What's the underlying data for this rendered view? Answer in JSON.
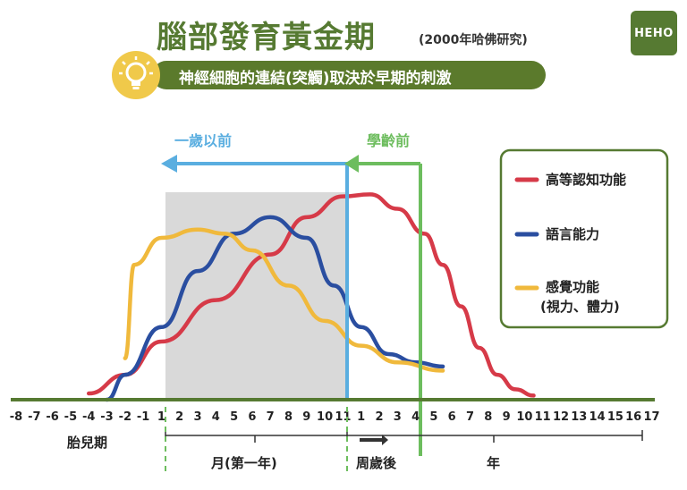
{
  "title": "腦部發育黃金期",
  "source": "(2000年哈佛研究)",
  "subtitle": "神經細胞的連結(突觸)取決於早期的刺激",
  "logo": "HEHO",
  "colors": {
    "green": "#567a32",
    "red": "#d63a48",
    "blue": "#2a4ea0",
    "yellow": "#f0b93c",
    "lightblue": "#5aaee0",
    "lightgreen": "#6dbd5e",
    "shade": "#d9d9d9"
  },
  "chart_data": {
    "type": "line",
    "x_ticks": [
      "-8",
      "-7",
      "-6",
      "-5",
      "-4",
      "-3",
      "-2",
      "-1",
      "1",
      "2",
      "3",
      "4",
      "5",
      "6",
      "7",
      "8",
      "9",
      "10",
      "11",
      "1",
      "2",
      "3",
      "4",
      "5",
      "6",
      "7",
      "8",
      "9",
      "10",
      "11",
      "12",
      "13",
      "14",
      "15",
      "16",
      "17"
    ],
    "periods": [
      {
        "label": "胎兒期"
      },
      {
        "label": "月(第一年)"
      },
      {
        "label": "周歲後"
      },
      {
        "label": "年"
      }
    ],
    "markers": [
      {
        "label": "一歲以前"
      },
      {
        "label": "學齡前"
      }
    ],
    "series": [
      {
        "name": "高等認知功能",
        "color": "#d63a48",
        "points": [
          [
            -3,
            0.03
          ],
          [
            -1,
            0.12
          ],
          [
            1,
            0.28
          ],
          [
            4,
            0.48
          ],
          [
            7,
            0.7
          ],
          [
            9,
            0.88
          ],
          [
            11,
            0.98
          ],
          [
            12.5,
            0.99
          ],
          [
            14,
            0.92
          ],
          [
            15.5,
            0.8
          ],
          [
            16.5,
            0.65
          ],
          [
            17.5,
            0.45
          ],
          [
            18.5,
            0.25
          ],
          [
            19.5,
            0.12
          ],
          [
            20.5,
            0.05
          ],
          [
            21.5,
            0.02
          ]
        ]
      },
      {
        "name": "語言能力",
        "color": "#2a4ea0",
        "points": [
          [
            -2,
            0.0
          ],
          [
            -1,
            0.12
          ],
          [
            1,
            0.35
          ],
          [
            3,
            0.62
          ],
          [
            5,
            0.8
          ],
          [
            7,
            0.88
          ],
          [
            9,
            0.78
          ],
          [
            10.5,
            0.55
          ],
          [
            12,
            0.35
          ],
          [
            13.5,
            0.22
          ],
          [
            15,
            0.18
          ],
          [
            16.5,
            0.16
          ]
        ]
      },
      {
        "name": "感覺功能(視力、體力)",
        "color": "#f0b93c",
        "points": [
          [
            -1,
            0.2
          ],
          [
            -0.5,
            0.65
          ],
          [
            1,
            0.78
          ],
          [
            3,
            0.82
          ],
          [
            4.5,
            0.8
          ],
          [
            6,
            0.72
          ],
          [
            8,
            0.55
          ],
          [
            10,
            0.38
          ],
          [
            12,
            0.26
          ],
          [
            14,
            0.18
          ],
          [
            16.5,
            0.14
          ]
        ]
      }
    ],
    "legend": [
      "高等認知功能",
      "語言能力",
      "感覺功能",
      "(視力、體力)"
    ],
    "legend_position": "right",
    "y_axis": "none"
  }
}
